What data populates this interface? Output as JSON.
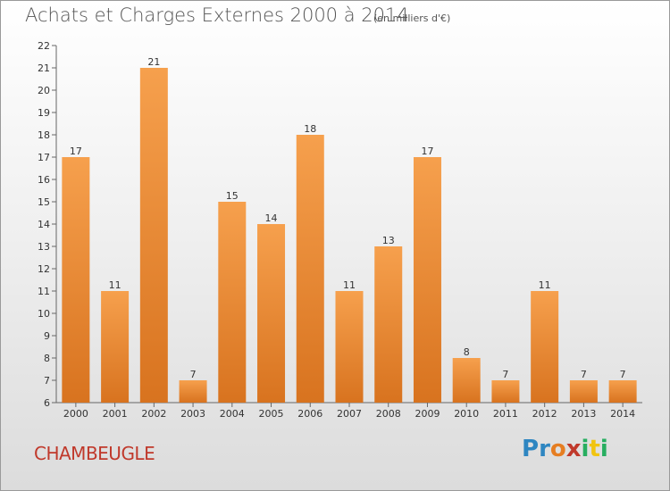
{
  "header": {
    "title": "Achats et Charges Externes 2000 à 2014",
    "subtitle": "(en milliers d'€)"
  },
  "footer": {
    "commune": "CHAMBEUGLE",
    "logo_text": "Proxiti",
    "logo_letters": [
      {
        "ch": "P",
        "color": "#2e86c1"
      },
      {
        "ch": "r",
        "color": "#2e86c1"
      },
      {
        "ch": "o",
        "color": "#e67e22"
      },
      {
        "ch": "x",
        "color": "#c0392b"
      },
      {
        "ch": "i",
        "color": "#27ae60"
      },
      {
        "ch": "t",
        "color": "#f1c40f"
      },
      {
        "ch": "i",
        "color": "#27ae60"
      }
    ]
  },
  "colors": {
    "bar_top": "#f6a04d",
    "bar_bottom": "#d8731f",
    "commune": "#c0392b"
  },
  "chart_data": {
    "type": "bar",
    "title": "Achats et Charges Externes 2000 à 2014",
    "subtitle": "(en milliers d'€)",
    "categories": [
      "2000",
      "2001",
      "2002",
      "2003",
      "2004",
      "2005",
      "2006",
      "2007",
      "2008",
      "2009",
      "2010",
      "2011",
      "2012",
      "2013",
      "2014"
    ],
    "values": [
      17,
      11,
      21,
      7,
      15,
      14,
      18,
      11,
      13,
      17,
      8,
      7,
      11,
      7,
      7
    ],
    "ylim": [
      6,
      22
    ],
    "yticks": [
      6,
      7,
      8,
      9,
      10,
      11,
      12,
      13,
      14,
      15,
      16,
      17,
      18,
      19,
      20,
      21,
      22
    ],
    "grid": false,
    "xlabel": "",
    "ylabel": ""
  }
}
